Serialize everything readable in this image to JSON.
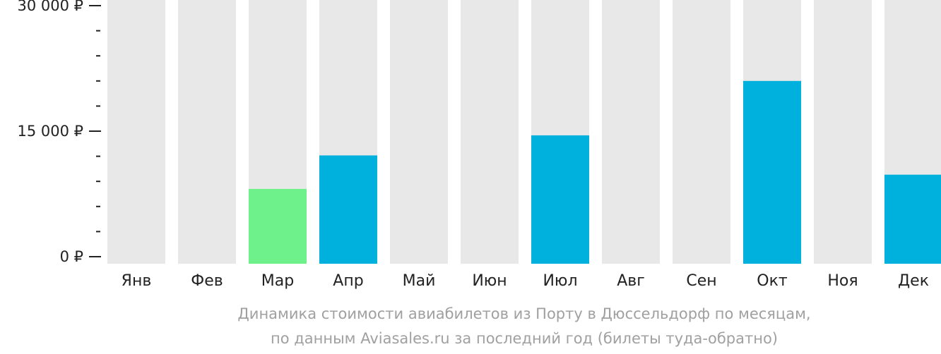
{
  "chart_data": {
    "type": "bar",
    "categories": [
      "Янв",
      "Фев",
      "Мар",
      "Апр",
      "Май",
      "Июн",
      "Июл",
      "Авг",
      "Сен",
      "Окт",
      "Ноя",
      "Дек"
    ],
    "values": [
      null,
      null,
      8100,
      12100,
      null,
      null,
      14500,
      null,
      null,
      21000,
      null,
      9800
    ],
    "highlight_index": 2,
    "ylim": [
      0,
      30000
    ],
    "yticks": [
      {
        "value": 0,
        "label": "0 ₽"
      },
      {
        "value": 15000,
        "label": "15 000 ₽"
      },
      {
        "value": 30000,
        "label": "30 000 ₽"
      }
    ],
    "minor_tick_step": 3000,
    "caption_line1": "Динамика стоимости авиабилетов из Порту в Дюссельдорф по месяцам,",
    "caption_line2": "по данным Aviasales.ru за последний год (билеты туда-обратно)",
    "colors": {
      "bar": "#00b0dd",
      "bar_highlight": "#6ef08a",
      "background_bar": "#e8e8e8",
      "axis": "#222222",
      "caption": "#a0a0a0"
    }
  }
}
